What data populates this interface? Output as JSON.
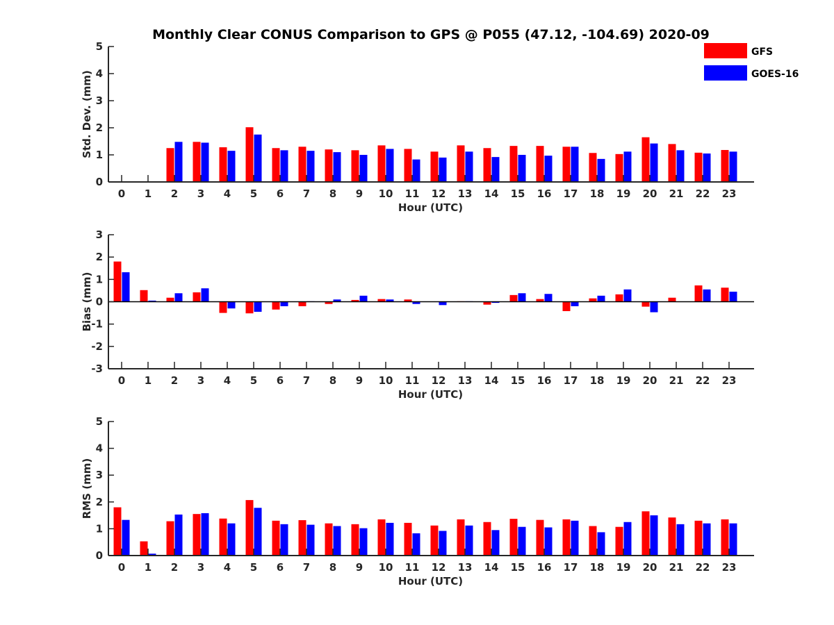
{
  "title": "Monthly Clear CONUS Comparison to GPS @ P055 (47.12, -104.69) 2020-09",
  "legend": {
    "placement": "top-right",
    "entries": [
      {
        "name": "GFS",
        "color": "#ff0000"
      },
      {
        "name": "GOES-16",
        "color": "#0000ff"
      }
    ]
  },
  "chart_data": [
    {
      "type": "bar",
      "ylabel": "Std. Dev. (mm)",
      "xlabel": "Hour (UTC)",
      "categories": [
        "0",
        "1",
        "2",
        "3",
        "4",
        "5",
        "6",
        "7",
        "8",
        "9",
        "10",
        "11",
        "12",
        "13",
        "14",
        "15",
        "16",
        "17",
        "18",
        "19",
        "20",
        "21",
        "22",
        "23"
      ],
      "ylim": [
        0,
        5
      ],
      "yticks": [
        "0",
        "1",
        "2",
        "3",
        "4",
        "5"
      ],
      "grid": false,
      "series": [
        {
          "name": "GFS",
          "color": "#ff0000",
          "values": [
            0,
            0,
            1.25,
            1.48,
            1.28,
            2.02,
            1.25,
            1.3,
            1.2,
            1.17,
            1.35,
            1.22,
            1.12,
            1.35,
            1.25,
            1.33,
            1.33,
            1.3,
            1.07,
            1.03,
            1.65,
            1.4,
            1.08,
            1.18
          ]
        },
        {
          "name": "GOES-16",
          "color": "#0000ff",
          "values": [
            0,
            0,
            1.48,
            1.45,
            1.15,
            1.75,
            1.17,
            1.15,
            1.1,
            1.0,
            1.22,
            0.83,
            0.9,
            1.12,
            0.92,
            1.0,
            0.97,
            1.3,
            0.85,
            1.12,
            1.42,
            1.17,
            1.05,
            1.12
          ]
        }
      ]
    },
    {
      "type": "bar",
      "ylabel": "Bias (mm)",
      "xlabel": "Hour (UTC)",
      "categories": [
        "0",
        "1",
        "2",
        "3",
        "4",
        "5",
        "6",
        "7",
        "8",
        "9",
        "10",
        "11",
        "12",
        "13",
        "14",
        "15",
        "16",
        "17",
        "18",
        "19",
        "20",
        "21",
        "22",
        "23"
      ],
      "ylim": [
        -3,
        3
      ],
      "yticks": [
        "-3",
        "-2",
        "-1",
        "0",
        "1",
        "2",
        "3"
      ],
      "grid": false,
      "series": [
        {
          "name": "GFS",
          "color": "#ff0000",
          "values": [
            1.8,
            0.52,
            0.18,
            0.42,
            -0.5,
            -0.52,
            -0.35,
            -0.2,
            -0.1,
            0.08,
            0.12,
            0.1,
            0.0,
            0.02,
            -0.13,
            0.3,
            0.12,
            -0.42,
            0.15,
            0.33,
            -0.22,
            0.18,
            0.73,
            0.63
          ]
        },
        {
          "name": "GOES-16",
          "color": "#0000ff",
          "values": [
            1.32,
            0.05,
            0.38,
            0.6,
            -0.3,
            -0.45,
            -0.2,
            0.02,
            0.1,
            0.27,
            0.1,
            -0.1,
            -0.15,
            0.02,
            -0.05,
            0.38,
            0.35,
            -0.2,
            0.27,
            0.55,
            -0.47,
            0.0,
            0.55,
            0.45
          ]
        }
      ]
    },
    {
      "type": "bar",
      "ylabel": "RMS (mm)",
      "xlabel": "Hour (UTC)",
      "categories": [
        "0",
        "1",
        "2",
        "3",
        "4",
        "5",
        "6",
        "7",
        "8",
        "9",
        "10",
        "11",
        "12",
        "13",
        "14",
        "15",
        "16",
        "17",
        "18",
        "19",
        "20",
        "21",
        "22",
        "23"
      ],
      "ylim": [
        0,
        5
      ],
      "yticks": [
        "0",
        "1",
        "2",
        "3",
        "4",
        "5"
      ],
      "grid": false,
      "series": [
        {
          "name": "GFS",
          "color": "#ff0000",
          "values": [
            1.8,
            0.53,
            1.28,
            1.55,
            1.38,
            2.07,
            1.3,
            1.32,
            1.2,
            1.17,
            1.35,
            1.22,
            1.12,
            1.35,
            1.25,
            1.37,
            1.33,
            1.35,
            1.1,
            1.07,
            1.65,
            1.42,
            1.3,
            1.35
          ]
        },
        {
          "name": "GOES-16",
          "color": "#0000ff",
          "values": [
            1.33,
            0.07,
            1.53,
            1.58,
            1.2,
            1.78,
            1.17,
            1.15,
            1.1,
            1.02,
            1.22,
            0.83,
            0.92,
            1.12,
            0.95,
            1.07,
            1.05,
            1.3,
            0.87,
            1.25,
            1.5,
            1.17,
            1.2,
            1.2
          ]
        }
      ]
    }
  ]
}
